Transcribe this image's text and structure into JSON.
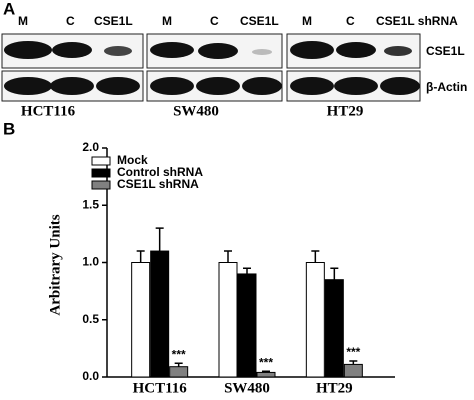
{
  "panel_a": {
    "label": "A",
    "lanes": [
      [
        "M",
        "C",
        "CSE1L"
      ],
      [
        "M",
        "C",
        "CSE1L"
      ],
      [
        "M",
        "C",
        "CSE1L shRNA"
      ]
    ],
    "blots": [
      "CSE1L",
      "β-Actin"
    ],
    "cell_lines": [
      "HCT116",
      "SW480",
      "HT29"
    ]
  },
  "chart_data": {
    "type": "bar",
    "panel_label": "B",
    "ylabel": "Arbitrary Units",
    "categories": [
      "HCT116",
      "SW480",
      "HT29"
    ],
    "series": [
      {
        "name": "Mock",
        "color": "#ffffff",
        "values": [
          1.0,
          1.0,
          1.0
        ],
        "errors": [
          0.1,
          0.1,
          0.1
        ]
      },
      {
        "name": "Control shRNA",
        "color": "#000000",
        "values": [
          1.1,
          0.9,
          0.85
        ],
        "errors": [
          0.2,
          0.05,
          0.1
        ]
      },
      {
        "name": "CSE1L shRNA",
        "color": "#808080",
        "values": [
          0.09,
          0.04,
          0.11
        ],
        "errors": [
          0.03,
          0.01,
          0.03
        ],
        "annotations": [
          "***",
          "***",
          "***"
        ]
      }
    ],
    "ylim": [
      0,
      2.0
    ],
    "yticks": [
      {
        "value": 0,
        "label": "0.0"
      },
      {
        "value": 0.5,
        "label": "0.5"
      },
      {
        "value": 1.0,
        "label": "1.0"
      },
      {
        "value": 1.5,
        "label": "1.5"
      },
      {
        "value": 2.0,
        "label": "2.0"
      }
    ],
    "legend": "upper-left"
  }
}
